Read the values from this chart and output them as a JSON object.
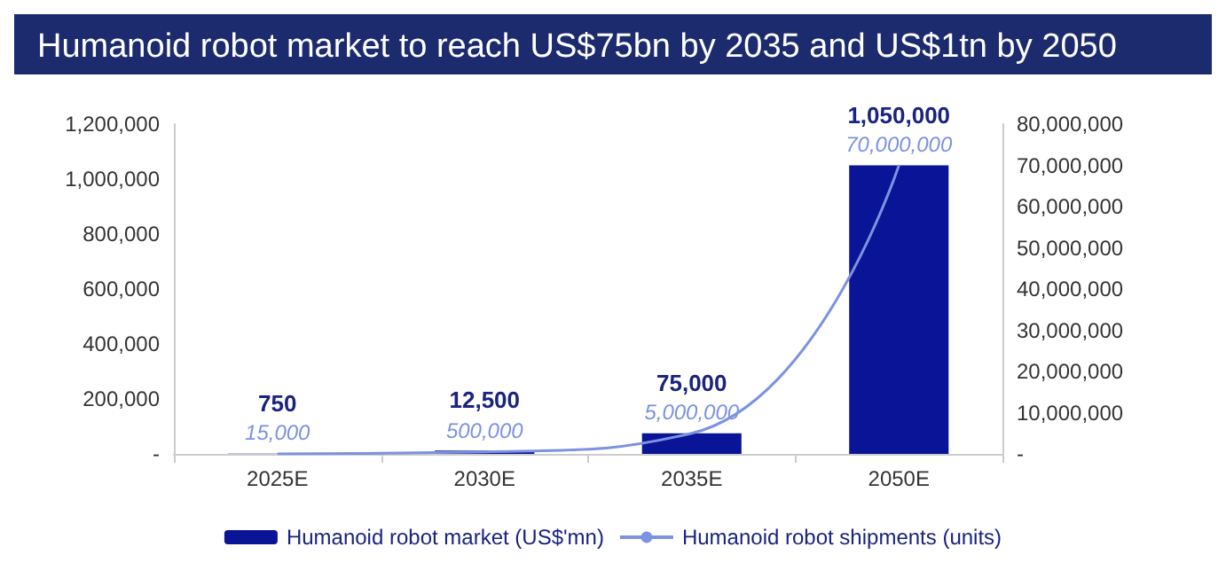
{
  "chart_data": {
    "type": "bar",
    "title": "Humanoid robot market to reach US$75bn by 2035 and US$1tn by 2050",
    "categories": [
      "2025E",
      "2030E",
      "2035E",
      "2050E"
    ],
    "series": [
      {
        "name": "Humanoid robot market (US$'mn)",
        "color": "#0a1496",
        "values": [
          750,
          12500,
          75000,
          1050000
        ],
        "value_labels": [
          "750",
          "12,500",
          "75,000",
          "1,050,000"
        ]
      },
      {
        "name": "Humanoid robot shipments (units)",
        "type": "line",
        "axis": "y2",
        "color": "#7b93e0",
        "values": [
          15000,
          500000,
          5000000,
          70000000
        ],
        "value_labels": [
          "15,000",
          "500,000",
          "5,000,000",
          "70,000,000"
        ],
        "marker": "none",
        "line_style": "solid"
      }
    ],
    "ylim": [
      0,
      1200000
    ],
    "yticks": [
      {
        "value": 0,
        "label": "-"
      },
      {
        "value": 200000,
        "label": "200,000"
      },
      {
        "value": 400000,
        "label": "400,000"
      },
      {
        "value": 600000,
        "label": "600,000"
      },
      {
        "value": 800000,
        "label": "800,000"
      },
      {
        "value": 1000000,
        "label": "1,000,000"
      },
      {
        "value": 1200000,
        "label": "1,200,000"
      }
    ],
    "y2lim": [
      0,
      80000000
    ],
    "y2ticks": [
      {
        "value": 0,
        "label": "-"
      },
      {
        "value": 10000000,
        "label": "10,000,000"
      },
      {
        "value": 20000000,
        "label": "20,000,000"
      },
      {
        "value": 30000000,
        "label": "30,000,000"
      },
      {
        "value": 40000000,
        "label": "40,000,000"
      },
      {
        "value": 50000000,
        "label": "50,000,000"
      },
      {
        "value": 60000000,
        "label": "60,000,000"
      },
      {
        "value": 70000000,
        "label": "70,000,000"
      },
      {
        "value": 80000000,
        "label": "80,000,000"
      }
    ],
    "grid": false,
    "legend": "bottom"
  }
}
